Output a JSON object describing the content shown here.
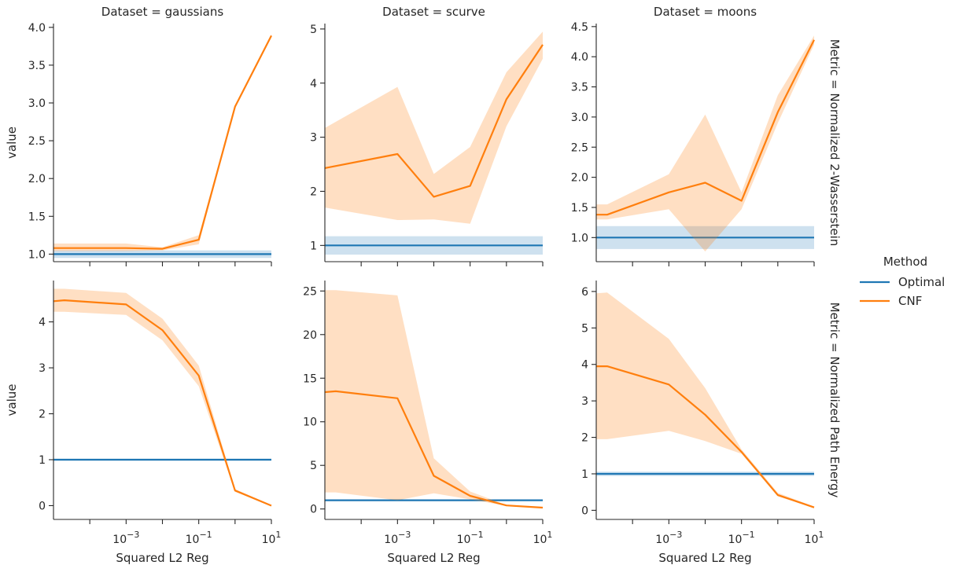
{
  "chart_data": {
    "type": "line",
    "x_scale": "log",
    "xlabel": "Squared L2 Reg",
    "ylabel": "value",
    "x_ticks": [
      "10^-3",
      "10^-1",
      "10^1"
    ],
    "grid": false,
    "legend": {
      "title": "Method",
      "placement": "right",
      "entries": [
        {
          "name": "Optimal",
          "color": "#1f77b4"
        },
        {
          "name": "CNF",
          "color": "#ff7f0e"
        }
      ]
    },
    "columns": [
      {
        "label": "Dataset = gaussians"
      },
      {
        "label": "Dataset = scurve"
      },
      {
        "label": "Dataset = moons"
      }
    ],
    "rows": [
      {
        "label": "Metric = Normalized 2-Wasserstein"
      },
      {
        "label": "Metric = Normalized Path Energy"
      }
    ],
    "panels": [
      {
        "row": 0,
        "col": 0,
        "dataset": "gaussians",
        "metric": "Normalized 2-Wasserstein",
        "ylim": [
          0.9,
          4.05
        ],
        "yticks": [
          1.0,
          1.5,
          2.0,
          2.5,
          3.0,
          3.5,
          4.0
        ],
        "ytick_labels": [
          "1.0",
          "1.5",
          "2.0",
          "2.5",
          "3.0",
          "3.5",
          "4.0"
        ],
        "series": [
          {
            "name": "Optimal",
            "x": [
              1e-05,
              10
            ],
            "y": [
              1.0,
              1.0
            ],
            "lower": [
              0.95,
              0.95
            ],
            "upper": [
              1.05,
              1.05
            ]
          },
          {
            "name": "CNF",
            "x": [
              1e-05,
              0.001,
              0.01,
              0.1,
              1,
              10
            ],
            "y": [
              1.08,
              1.08,
              1.07,
              1.19,
              2.95,
              3.89
            ],
            "lower": [
              1.04,
              1.04,
              1.05,
              1.13,
              2.93,
              3.87
            ],
            "upper": [
              1.14,
              1.14,
              1.09,
              1.25,
              2.97,
              3.91
            ]
          }
        ]
      },
      {
        "row": 0,
        "col": 1,
        "dataset": "scurve",
        "metric": "Normalized 2-Wasserstein",
        "ylim": [
          0.7,
          5.1
        ],
        "yticks": [
          1,
          2,
          3,
          4,
          5
        ],
        "ytick_labels": [
          "1",
          "2",
          "3",
          "4",
          "5"
        ],
        "series": [
          {
            "name": "Optimal",
            "x": [
              1e-05,
              10
            ],
            "y": [
              1.0,
              1.0
            ],
            "lower": [
              0.83,
              0.83
            ],
            "upper": [
              1.17,
              1.17
            ]
          },
          {
            "name": "CNF",
            "x": [
              1e-05,
              0.001,
              0.01,
              0.1,
              1,
              10
            ],
            "y": [
              2.43,
              2.69,
              1.9,
              2.1,
              3.7,
              4.71
            ],
            "lower": [
              1.7,
              1.47,
              1.48,
              1.4,
              3.2,
              4.45
            ],
            "upper": [
              3.17,
              3.93,
              2.32,
              2.82,
              4.2,
              4.95
            ]
          }
        ]
      },
      {
        "row": 0,
        "col": 2,
        "dataset": "moons",
        "metric": "Normalized 2-Wasserstein",
        "ylim": [
          0.6,
          4.55
        ],
        "yticks": [
          1.0,
          1.5,
          2.0,
          2.5,
          3.0,
          3.5,
          4.0,
          4.5
        ],
        "ytick_labels": [
          "1.0",
          "1.5",
          "2.0",
          "2.5",
          "3.0",
          "3.5",
          "4.0",
          "4.5"
        ],
        "series": [
          {
            "name": "Optimal",
            "x": [
              1e-05,
              10
            ],
            "y": [
              1.0,
              1.0
            ],
            "lower": [
              0.81,
              0.81
            ],
            "upper": [
              1.19,
              1.19
            ]
          },
          {
            "name": "CNF",
            "x": [
              1e-05,
              2e-05,
              0.001,
              0.01,
              0.1,
              1,
              10
            ],
            "y": [
              1.38,
              1.38,
              1.75,
              1.91,
              1.61,
              3.08,
              4.28
            ],
            "lower": [
              1.3,
              1.3,
              1.47,
              0.77,
              1.47,
              2.9,
              4.2
            ],
            "upper": [
              1.55,
              1.55,
              2.05,
              3.04,
              1.75,
              3.36,
              4.35
            ]
          }
        ]
      },
      {
        "row": 1,
        "col": 0,
        "dataset": "gaussians",
        "metric": "Normalized Path Energy",
        "ylim": [
          -0.3,
          4.9
        ],
        "yticks": [
          0,
          1,
          2,
          3,
          4
        ],
        "ytick_labels": [
          "0",
          "1",
          "2",
          "3",
          "4"
        ],
        "series": [
          {
            "name": "Optimal",
            "x": [
              1e-05,
              10
            ],
            "y": [
              1.0,
              1.0
            ],
            "lower": [
              0.98,
              0.98
            ],
            "upper": [
              1.02,
              1.02
            ]
          },
          {
            "name": "CNF",
            "x": [
              1e-05,
              2e-05,
              0.001,
              0.01,
              0.1,
              1,
              10
            ],
            "y": [
              4.45,
              4.47,
              4.38,
              3.82,
              2.83,
              0.33,
              0.0
            ],
            "lower": [
              4.22,
              4.22,
              4.15,
              3.6,
              2.6,
              0.3,
              0.0
            ],
            "upper": [
              4.72,
              4.72,
              4.63,
              4.07,
              3.05,
              0.36,
              0.01
            ]
          }
        ]
      },
      {
        "row": 1,
        "col": 1,
        "dataset": "scurve",
        "metric": "Normalized Path Energy",
        "ylim": [
          -1.2,
          26.2
        ],
        "yticks": [
          0,
          5,
          10,
          15,
          20,
          25
        ],
        "ytick_labels": [
          "0",
          "5",
          "10",
          "15",
          "20",
          "25"
        ],
        "series": [
          {
            "name": "Optimal",
            "x": [
              1e-05,
              10
            ],
            "y": [
              1.0,
              1.0
            ],
            "lower": [
              0.9,
              0.9
            ],
            "upper": [
              1.1,
              1.1
            ]
          },
          {
            "name": "CNF",
            "x": [
              1e-05,
              2e-05,
              0.001,
              0.01,
              0.1,
              1,
              10
            ],
            "y": [
              13.4,
              13.5,
              12.7,
              3.8,
              1.5,
              0.4,
              0.15
            ],
            "lower": [
              1.9,
              1.9,
              1.0,
              1.8,
              1.1,
              0.35,
              0.1
            ],
            "upper": [
              25.1,
              25.1,
              24.5,
              5.8,
              2.0,
              0.45,
              0.2
            ]
          }
        ]
      },
      {
        "row": 1,
        "col": 2,
        "dataset": "moons",
        "metric": "Normalized Path Energy",
        "ylim": [
          -0.25,
          6.3
        ],
        "yticks": [
          0,
          1,
          2,
          3,
          4,
          5,
          6
        ],
        "ytick_labels": [
          "0",
          "1",
          "2",
          "3",
          "4",
          "5",
          "6"
        ],
        "series": [
          {
            "name": "Optimal",
            "x": [
              1e-05,
              10
            ],
            "y": [
              1.0,
              1.0
            ],
            "lower": [
              0.94,
              0.94
            ],
            "upper": [
              1.06,
              1.06
            ]
          },
          {
            "name": "CNF",
            "x": [
              1e-05,
              2e-05,
              0.001,
              0.01,
              0.1,
              1,
              10
            ],
            "y": [
              3.95,
              3.95,
              3.45,
              2.62,
              1.6,
              0.42,
              0.08
            ],
            "lower": [
              1.95,
              1.95,
              2.18,
              1.9,
              1.55,
              0.38,
              0.07
            ],
            "upper": [
              5.95,
              5.97,
              4.7,
              3.35,
              1.67,
              0.48,
              0.1
            ]
          }
        ]
      }
    ]
  }
}
